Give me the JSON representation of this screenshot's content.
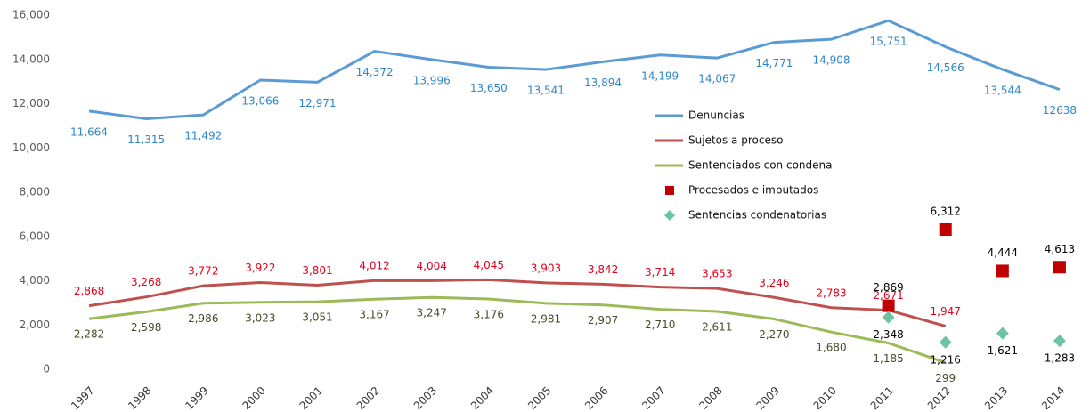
{
  "chart_data": {
    "type": "line",
    "categories": [
      "1997",
      "1998",
      "1999",
      "2000",
      "2001",
      "2002",
      "2003",
      "2004",
      "2005",
      "2006",
      "2007",
      "2008",
      "2009",
      "2010",
      "2011",
      "2012",
      "2013",
      "2014"
    ],
    "ylim": [
      0,
      16000
    ],
    "yticks": [
      0,
      {
        "value": 2000,
        "label": "2,000"
      },
      {
        "value": 4000,
        "label": "4,000"
      },
      {
        "value": 6000,
        "label": "6,000"
      },
      {
        "value": 8000,
        "label": "8,000"
      },
      {
        "value": 10000,
        "label": "10,000"
      },
      {
        "value": 12000,
        "label": "12,000"
      },
      {
        "value": 14000,
        "label": "14,000"
      },
      {
        "value": 16000,
        "label": "16,000"
      }
    ],
    "grid": false,
    "legend": "center",
    "series": [
      {
        "name": "Denuncias",
        "color": "#5b9bd5",
        "label_color": "#2e86c8",
        "mark": "line",
        "values": [
          11664,
          11315,
          11492,
          13066,
          12971,
          14372,
          13996,
          13650,
          13541,
          13894,
          14199,
          14067,
          14771,
          14908,
          15751,
          14566,
          13544,
          12638
        ],
        "value_labels": [
          "11,664",
          "11,315",
          "11,492",
          "13,066",
          "12,971",
          "14,372",
          "13,996",
          "13,650",
          "13,541",
          "13,894",
          "14,199",
          "14,067",
          "14,771",
          "14,908",
          "15,751",
          "14,566",
          "13,544",
          "12638"
        ]
      },
      {
        "name": "Sujetos a proceso",
        "color": "#c0504d",
        "label_color": "#e3001b",
        "mark": "line",
        "values": [
          2868,
          3268,
          3772,
          3922,
          3801,
          4012,
          4004,
          4045,
          3903,
          3842,
          3714,
          3653,
          3246,
          2783,
          2671,
          1947,
          null,
          null
        ],
        "value_labels": [
          "2,868",
          "3,268",
          "3,772",
          "3,922",
          "3,801",
          "4,012",
          "4,004",
          "4,045",
          "3,903",
          "3,842",
          "3,714",
          "3,653",
          "3,246",
          "2,783",
          "2,671",
          "1,947",
          null,
          null
        ]
      },
      {
        "name": "Sentenciados con condena",
        "color": "#9bbb59",
        "label_color": "#4a4a2a",
        "mark": "line",
        "values": [
          2282,
          2598,
          2986,
          3023,
          3051,
          3167,
          3247,
          3176,
          2981,
          2907,
          2710,
          2611,
          2270,
          1680,
          1185,
          299,
          null,
          null
        ],
        "value_labels": [
          "2,282",
          "2,598",
          "2,986",
          "3,023",
          "3,051",
          "3,167",
          "3,247",
          "3,176",
          "2,981",
          "2,907",
          "2,710",
          "2,611",
          "2,270",
          "1,680",
          "1,185",
          "299",
          null,
          null
        ]
      },
      {
        "name": "Procesados e imputados",
        "color": "#c00000",
        "label_color": "#000000",
        "mark": "square",
        "values": [
          null,
          null,
          null,
          null,
          null,
          null,
          null,
          null,
          null,
          null,
          null,
          null,
          null,
          null,
          2869,
          6312,
          4444,
          4613
        ],
        "value_labels": [
          null,
          null,
          null,
          null,
          null,
          null,
          null,
          null,
          null,
          null,
          null,
          null,
          null,
          null,
          "2,869",
          "6,312",
          "4,444",
          "4,613"
        ]
      },
      {
        "name": "Sentencias condenatorias",
        "color": "#6cc4a4",
        "label_color": "#000000",
        "mark": "diamond",
        "values": [
          null,
          null,
          null,
          null,
          null,
          null,
          null,
          null,
          null,
          null,
          null,
          null,
          null,
          null,
          2348,
          1216,
          1621,
          1283
        ],
        "value_labels": [
          null,
          null,
          null,
          null,
          null,
          null,
          null,
          null,
          null,
          null,
          null,
          null,
          null,
          null,
          "2,348",
          "1,216",
          "1,621",
          "1,283"
        ]
      }
    ]
  }
}
